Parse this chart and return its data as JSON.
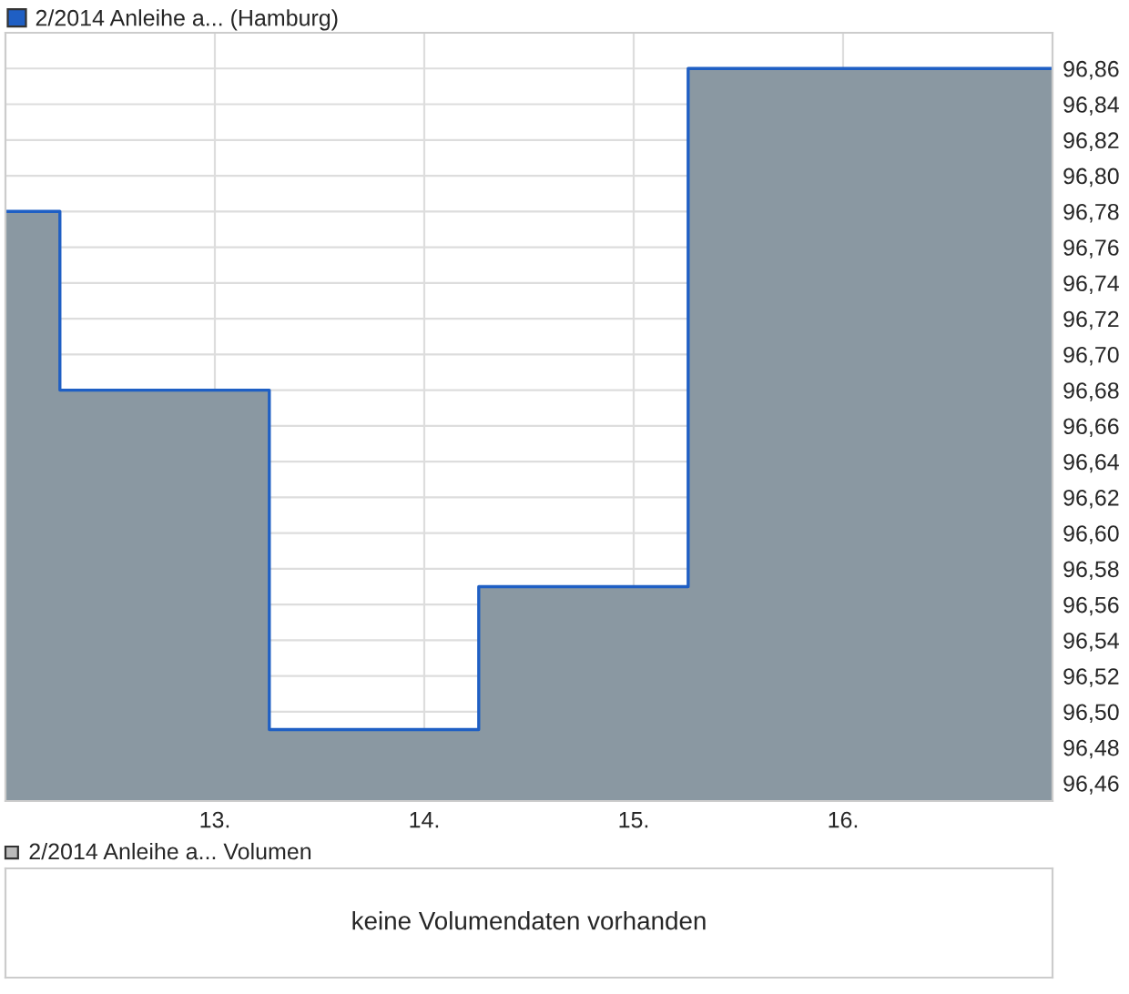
{
  "chart_data": [
    {
      "type": "step",
      "x": [
        12.0,
        12.26,
        13.26,
        14.26,
        15.26,
        17.0
      ],
      "series": [
        {
          "type": "area",
          "color": "#8a98a2",
          "values": [
            96.78,
            96.68,
            96.49,
            96.57,
            96.86,
            96.86
          ]
        },
        {
          "name": "2/2014 Anleihe a... (Hamburg)",
          "color": "#1f5fc4",
          "values": [
            96.78,
            96.68,
            96.49,
            96.57,
            96.86,
            96.86
          ]
        }
      ],
      "xlim": [
        12.0,
        17.0
      ],
      "xticks": [
        {
          "value": 13,
          "label": "13."
        },
        {
          "value": 14,
          "label": "14."
        },
        {
          "value": 15,
          "label": "15."
        },
        {
          "value": 16,
          "label": "16."
        }
      ],
      "ylim": [
        96.45,
        96.88
      ],
      "yticks": [
        {
          "value": 96.46,
          "label": "96,46"
        },
        {
          "value": 96.48,
          "label": "96,48"
        },
        {
          "value": 96.5,
          "label": "96,50"
        },
        {
          "value": 96.52,
          "label": "96,52"
        },
        {
          "value": 96.54,
          "label": "96,54"
        },
        {
          "value": 96.56,
          "label": "96,56"
        },
        {
          "value": 96.58,
          "label": "96,58"
        },
        {
          "value": 96.6,
          "label": "96,60"
        },
        {
          "value": 96.62,
          "label": "96,62"
        },
        {
          "value": 96.64,
          "label": "96,64"
        },
        {
          "value": 96.66,
          "label": "96,66"
        },
        {
          "value": 96.68,
          "label": "96,68"
        },
        {
          "value": 96.7,
          "label": "96,70"
        },
        {
          "value": 96.72,
          "label": "96,72"
        },
        {
          "value": 96.74,
          "label": "96,74"
        },
        {
          "value": 96.76,
          "label": "96,76"
        },
        {
          "value": 96.78,
          "label": "96,78"
        },
        {
          "value": 96.8,
          "label": "96,80"
        },
        {
          "value": 96.82,
          "label": "96,82"
        },
        {
          "value": 96.84,
          "label": "96,84"
        },
        {
          "value": 96.86,
          "label": "96,86"
        }
      ],
      "grid": true,
      "legend": "top left"
    },
    {
      "type": "other",
      "title": "2/2014 Anleihe a... Volumen",
      "annotations": [
        "keine Volumendaten vorhanden"
      ]
    }
  ]
}
